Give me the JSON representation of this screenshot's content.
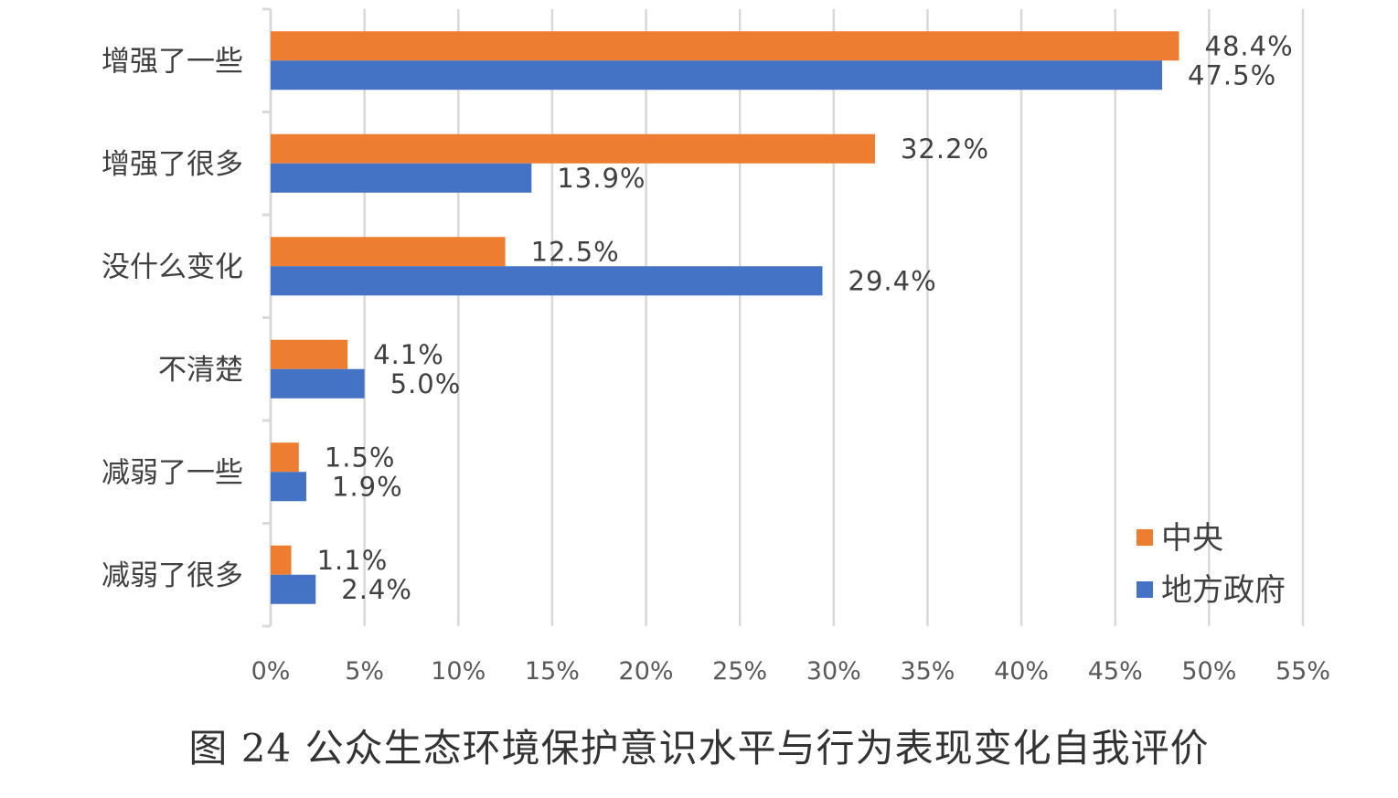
{
  "caption": "图 24 公众生态环境保护意识水平与行为表现变化自我评价",
  "chart_data": {
    "type": "bar",
    "orientation": "horizontal",
    "categories": [
      "增强了一些",
      "增强了很多",
      "没什么变化",
      "不清楚",
      "减弱了一些",
      "减弱了很多"
    ],
    "series": [
      {
        "name": "中央",
        "color": "#ED7D31",
        "values": [
          48.4,
          32.2,
          12.5,
          4.1,
          1.5,
          1.1
        ],
        "labels": [
          "48.4%",
          "32.2%",
          "12.5%",
          "4.1%",
          "1.5%",
          "1.1%"
        ]
      },
      {
        "name": "地方政府",
        "color": "#4472C4",
        "values": [
          47.5,
          13.9,
          29.4,
          5.0,
          1.9,
          2.4
        ],
        "labels": [
          "47.5%",
          "13.9%",
          "29.4%",
          "5.0%",
          "1.9%",
          "2.4%"
        ]
      }
    ],
    "xlim": [
      0,
      55
    ],
    "xticks": [
      "0%",
      "5%",
      "10%",
      "15%",
      "20%",
      "25%",
      "30%",
      "35%",
      "40%",
      "45%",
      "50%",
      "55%"
    ],
    "grid": "vertical",
    "legend_position": "right-bottom"
  }
}
